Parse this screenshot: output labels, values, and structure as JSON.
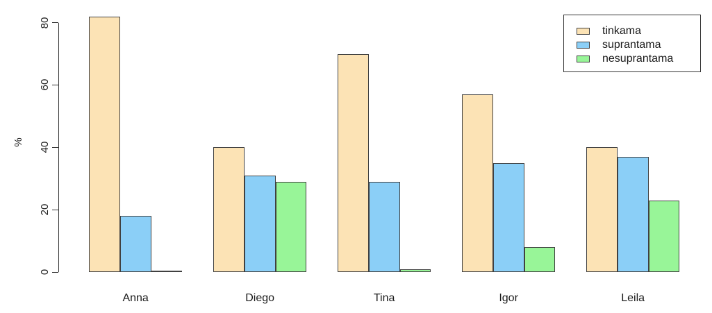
{
  "chart": {
    "background": "#FFFFFF",
    "axis_color": "#333333",
    "bar_border_color": "#404040",
    "text_color": "#1A1A1A"
  },
  "chart_data": {
    "type": "bar",
    "title": "",
    "xlabel": "",
    "ylabel": "%",
    "ylim": [
      0,
      80
    ],
    "yticks": [
      0,
      20,
      40,
      60,
      80
    ],
    "grid": false,
    "legend_position": "top-right",
    "categories": [
      "Anna",
      "Diego",
      "Tina",
      "Igor",
      "Leila"
    ],
    "series": [
      {
        "name": "tinkama",
        "color": "#FCE3B5",
        "values": [
          82,
          40,
          70,
          57,
          40
        ]
      },
      {
        "name": "suprantama",
        "color": "#8BCFF7",
        "values": [
          18,
          31,
          29,
          35,
          37
        ]
      },
      {
        "name": "nesuprantama",
        "color": "#98F598",
        "values": [
          0,
          29,
          1,
          8,
          23
        ]
      }
    ]
  }
}
